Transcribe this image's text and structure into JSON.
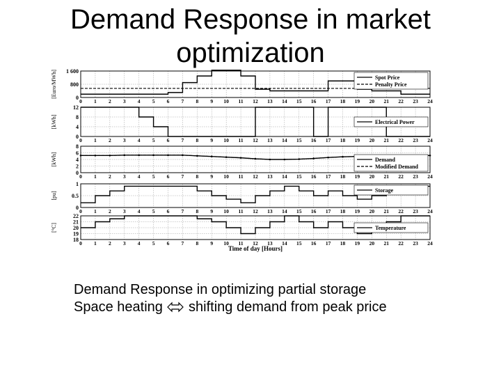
{
  "slide": {
    "title_line1": "Demand Response in market",
    "title_line2": "optimization",
    "caption1": "Demand Response in optimizing partial storage",
    "caption2_left": "Space heating",
    "caption2_right": "shifting demand from peak price",
    "arrow_icon": "left-right-arrow"
  },
  "chart_data": {
    "type": "line",
    "xlabel": "Time of day [Hours]",
    "x_ticks": [
      0,
      1,
      2,
      3,
      4,
      5,
      6,
      7,
      8,
      9,
      10,
      11,
      12,
      13,
      14,
      15,
      16,
      17,
      18,
      19,
      20,
      21,
      22,
      23,
      24
    ],
    "xlim": [
      0,
      24
    ],
    "grid": true,
    "panels": [
      {
        "ylabel": "[Euro/MWh]",
        "ylim": [
          0,
          1600
        ],
        "y_ticks": [
          0,
          800,
          1600
        ],
        "y_tick_labels": [
          "0",
          "800",
          "1 600"
        ],
        "legend": "top-right",
        "series": [
          {
            "name": "Spot Price",
            "style": "solid",
            "step": true,
            "values": [
              200,
              200,
              200,
              200,
              200,
              200,
              300,
              900,
              1300,
              1650,
              1650,
              1300,
              500,
              400,
              400,
              400,
              400,
              1000,
              1000,
              500,
              400,
              400,
              200,
              200
            ]
          },
          {
            "name": "Penalty Price",
            "style": "dashed",
            "values": [
              550,
              550,
              550,
              550,
              550,
              550,
              550,
              550,
              550,
              550,
              550,
              550,
              550,
              550,
              550,
              550,
              550,
              550,
              550,
              550,
              550,
              550,
              550,
              550,
              550
            ]
          }
        ]
      },
      {
        "ylabel": "[kWh]",
        "ylim": [
          0,
          12
        ],
        "y_ticks": [
          0,
          4,
          8,
          12
        ],
        "legend": "right",
        "series": [
          {
            "name": "Electrical Power",
            "style": "solid",
            "step": true,
            "values": [
              12,
              12,
              12,
              12,
              8,
              4,
              0,
              0,
              0,
              0,
              0,
              0,
              12,
              12,
              12,
              12,
              0,
              12,
              12,
              12,
              12,
              0,
              0,
              0
            ]
          }
        ]
      },
      {
        "ylabel": "[kWh]",
        "ylim": [
          0,
          8
        ],
        "y_ticks": [
          0,
          2,
          4,
          6,
          8
        ],
        "legend": "bottom-right",
        "series": [
          {
            "name": "Demand",
            "style": "solid",
            "values": [
              5.2,
              5.2,
              5.2,
              5.3,
              5.3,
              5.3,
              5.3,
              5.3,
              5.1,
              4.9,
              4.7,
              4.5,
              4.2,
              4.0,
              4.0,
              4.1,
              4.3,
              4.6,
              4.8,
              4.9,
              5.0,
              5.0,
              5.1,
              5.1,
              5.2
            ]
          },
          {
            "name": "Modified Demand",
            "style": "dashed",
            "values": [
              5.2,
              5.2,
              5.2,
              5.3,
              5.3,
              5.3,
              5.3,
              5.3,
              5.1,
              4.9,
              4.7,
              4.5,
              4.2,
              4.0,
              4.0,
              4.1,
              4.3,
              4.6,
              4.8,
              4.9,
              5.0,
              5.0,
              5.1,
              5.1,
              5.2
            ]
          }
        ]
      },
      {
        "ylabel": "[pu]",
        "ylim": [
          0,
          1
        ],
        "y_ticks": [
          0,
          0.5,
          1
        ],
        "legend": "top-right",
        "series": [
          {
            "name": "Storage",
            "style": "solid",
            "step": true,
            "values": [
              0.2,
              0.5,
              0.7,
              0.9,
              0.9,
              0.9,
              0.9,
              0.9,
              0.7,
              0.5,
              0.35,
              0.2,
              0.5,
              0.7,
              0.9,
              0.7,
              0.5,
              0.7,
              0.5,
              0.35,
              0.5,
              0.7,
              0.9,
              0.9
            ]
          }
        ]
      },
      {
        "ylabel": "[°C]",
        "ylim": [
          18,
          22
        ],
        "y_ticks": [
          18,
          19,
          20,
          21,
          22
        ],
        "legend": "right",
        "series": [
          {
            "name": "Temperature",
            "style": "solid",
            "step": true,
            "values": [
              20,
              21,
              21.5,
              22,
              22,
              22,
              22,
              22,
              21.5,
              21,
              20,
              19,
              20,
              21,
              22,
              21,
              20,
              21,
              20,
              19,
              20,
              21,
              22,
              22
            ]
          }
        ]
      }
    ]
  }
}
